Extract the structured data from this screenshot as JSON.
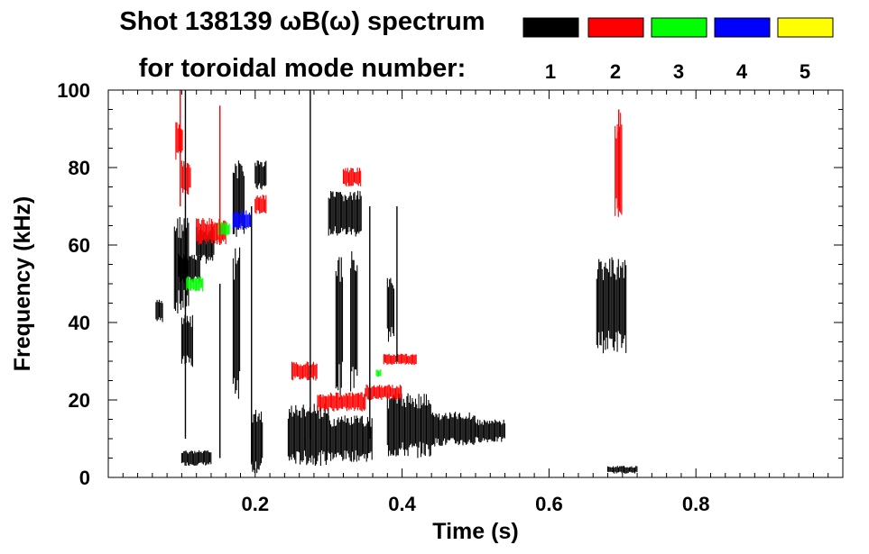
{
  "chart_data": {
    "type": "heatmap",
    "title_line1": "Shot 138139 ωB(ω) spectrum",
    "title_line2": "for toroidal mode number:",
    "xlabel": "Time (s)",
    "ylabel": "Frequency (kHz)",
    "xlim": [
      0.0,
      1.0
    ],
    "ylim": [
      0,
      100
    ],
    "x_ticks": [
      0.2,
      0.4,
      0.6,
      0.8
    ],
    "x_tick_labels": [
      "0.2",
      "0.4",
      "0.6",
      "0.8"
    ],
    "y_ticks": [
      0,
      20,
      40,
      60,
      80,
      100
    ],
    "y_tick_labels": [
      "0",
      "20",
      "40",
      "60",
      "80",
      "100"
    ],
    "legend": [
      {
        "label": "1",
        "color": "#000000"
      },
      {
        "label": "2",
        "color": "#ff0000"
      },
      {
        "label": "3",
        "color": "#00ff00"
      },
      {
        "label": "4",
        "color": "#0000ff"
      },
      {
        "label": "5",
        "color": "#ffff00"
      }
    ],
    "regions": [
      {
        "mode": 1,
        "t": [
          0.065,
          0.075
        ],
        "f": [
          40,
          46
        ]
      },
      {
        "mode": 1,
        "t": [
          0.09,
          0.11
        ],
        "f": [
          42,
          68
        ]
      },
      {
        "mode": 1,
        "t": [
          0.095,
          0.125
        ],
        "f": [
          50,
          58
        ]
      },
      {
        "mode": 1,
        "t": [
          0.1,
          0.115
        ],
        "f": [
          28,
          42
        ]
      },
      {
        "mode": 1,
        "t": [
          0.1,
          0.14
        ],
        "f": [
          3,
          7
        ]
      },
      {
        "mode": 1,
        "t": [
          0.12,
          0.145
        ],
        "f": [
          55,
          65
        ]
      },
      {
        "mode": 1,
        "t": [
          0.17,
          0.185
        ],
        "f": [
          62,
          82
        ]
      },
      {
        "mode": 1,
        "t": [
          0.17,
          0.18
        ],
        "f": [
          20,
          60
        ]
      },
      {
        "mode": 1,
        "t": [
          0.195,
          0.21
        ],
        "f": [
          1,
          18
        ]
      },
      {
        "mode": 1,
        "t": [
          0.2,
          0.215
        ],
        "f": [
          74,
          82
        ]
      },
      {
        "mode": 1,
        "t": [
          0.245,
          0.3
        ],
        "f": [
          3,
          19
        ]
      },
      {
        "mode": 1,
        "t": [
          0.3,
          0.345
        ],
        "f": [
          62,
          74
        ]
      },
      {
        "mode": 1,
        "t": [
          0.3,
          0.36
        ],
        "f": [
          4,
          16
        ]
      },
      {
        "mode": 1,
        "t": [
          0.31,
          0.32
        ],
        "f": [
          20,
          60
        ]
      },
      {
        "mode": 1,
        "t": [
          0.33,
          0.34
        ],
        "f": [
          20,
          62
        ]
      },
      {
        "mode": 1,
        "t": [
          0.38,
          0.44
        ],
        "f": [
          5,
          22
        ]
      },
      {
        "mode": 1,
        "t": [
          0.38,
          0.39
        ],
        "f": [
          35,
          52
        ]
      },
      {
        "mode": 1,
        "t": [
          0.44,
          0.5
        ],
        "f": [
          8,
          17
        ]
      },
      {
        "mode": 1,
        "t": [
          0.5,
          0.54
        ],
        "f": [
          9,
          15
        ]
      },
      {
        "mode": 1,
        "t": [
          0.665,
          0.705
        ],
        "f": [
          32,
          57
        ]
      },
      {
        "mode": 1,
        "t": [
          0.68,
          0.72
        ],
        "f": [
          1,
          3
        ]
      },
      {
        "mode": 2,
        "t": [
          0.092,
          0.102
        ],
        "f": [
          82,
          92
        ]
      },
      {
        "mode": 2,
        "t": [
          0.1,
          0.112
        ],
        "f": [
          73,
          82
        ]
      },
      {
        "mode": 2,
        "t": [
          0.12,
          0.16
        ],
        "f": [
          60,
          67
        ]
      },
      {
        "mode": 2,
        "t": [
          0.2,
          0.215
        ],
        "f": [
          68,
          73
        ]
      },
      {
        "mode": 2,
        "t": [
          0.25,
          0.285
        ],
        "f": [
          25,
          30
        ]
      },
      {
        "mode": 2,
        "t": [
          0.285,
          0.35
        ],
        "f": [
          17,
          22
        ]
      },
      {
        "mode": 2,
        "t": [
          0.32,
          0.345
        ],
        "f": [
          75,
          80
        ]
      },
      {
        "mode": 2,
        "t": [
          0.35,
          0.4
        ],
        "f": [
          20,
          24
        ]
      },
      {
        "mode": 2,
        "t": [
          0.375,
          0.42
        ],
        "f": [
          29,
          32
        ]
      },
      {
        "mode": 2,
        "t": [
          0.69,
          0.7
        ],
        "f": [
          65,
          95
        ]
      },
      {
        "mode": 3,
        "t": [
          0.105,
          0.13
        ],
        "f": [
          48,
          52
        ]
      },
      {
        "mode": 3,
        "t": [
          0.15,
          0.165
        ],
        "f": [
          62,
          66
        ]
      },
      {
        "mode": 3,
        "t": [
          0.365,
          0.372
        ],
        "f": [
          26,
          28
        ]
      },
      {
        "mode": 4,
        "t": [
          0.17,
          0.195
        ],
        "f": [
          64,
          69
        ]
      }
    ],
    "streaks": [
      {
        "mode": 1,
        "t": 0.195,
        "f": [
          4,
          70
        ]
      },
      {
        "mode": 1,
        "t": 0.275,
        "f": [
          10,
          100
        ]
      },
      {
        "mode": 1,
        "t": 0.356,
        "f": [
          10,
          70
        ]
      },
      {
        "mode": 1,
        "t": 0.393,
        "f": [
          30,
          70
        ]
      },
      {
        "mode": 1,
        "t": 0.105,
        "f": [
          10,
          100
        ]
      },
      {
        "mode": 1,
        "t": 0.152,
        "f": [
          5,
          50
        ]
      },
      {
        "mode": 2,
        "t": 0.098,
        "f": [
          70,
          100
        ]
      },
      {
        "mode": 2,
        "t": 0.152,
        "f": [
          60,
          96
        ]
      },
      {
        "mode": 2,
        "t": 0.695,
        "f": [
          70,
          95
        ]
      }
    ]
  }
}
